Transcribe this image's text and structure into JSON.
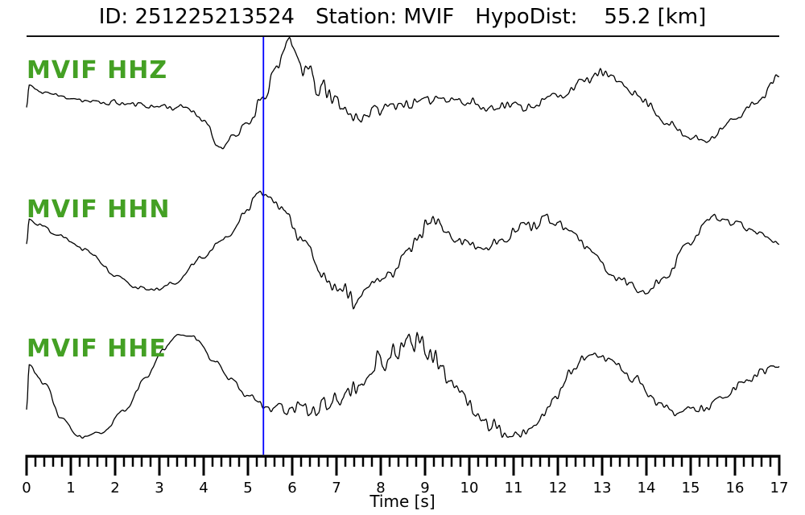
{
  "figure_title": {
    "id": "ID: 251225213524",
    "station": "Station: MVIF",
    "hypodist": "HypoDist:    55.2 [km]"
  },
  "colors": {
    "trace": "#000000",
    "channel_label_green": "#44a024",
    "pick_line_blue": "#0000ff",
    "axis": "#000000",
    "separator": "#111111",
    "background": "#ffffff"
  },
  "chart_data": {
    "type": "line",
    "title": "ID: 251225213524   Station: MVIF   HypoDist:    55.2 [km]",
    "xlabel": "Time [s]",
    "ylabel": "",
    "y_axis": "unlabeled, per-trace normalized amplitude",
    "x_range_s": [
      0,
      17
    ],
    "x_major_tick_s": 1,
    "x_minor_tick_s": 0.2,
    "x_tick_labels": [
      "0",
      "1",
      "2",
      "3",
      "4",
      "5",
      "6",
      "7",
      "8",
      "9",
      "10",
      "11",
      "12",
      "13",
      "14",
      "15",
      "16",
      "17"
    ],
    "grid": false,
    "legend": "none (green per-trace labels)",
    "pick_time_s": 5.35,
    "traces": [
      {
        "id": "hhz",
        "label": "MVIF HHZ",
        "seed": 11,
        "lf_points": [
          [
            0,
            -5
          ],
          [
            0.06,
            23
          ],
          [
            0.3,
            15
          ],
          [
            0.8,
            10
          ],
          [
            1.5,
            5
          ],
          [
            2.2,
            1
          ],
          [
            3,
            -2
          ],
          [
            3.6,
            -5
          ],
          [
            4,
            -20
          ],
          [
            4.35,
            -52
          ],
          [
            4.7,
            -42
          ],
          [
            5,
            -20
          ],
          [
            5.35,
            12
          ],
          [
            5.6,
            45
          ],
          [
            5.95,
            68
          ],
          [
            6.3,
            50
          ],
          [
            6.6,
            25
          ],
          [
            7,
            0
          ],
          [
            7.5,
            -18
          ],
          [
            8,
            -8
          ],
          [
            8.5,
            0
          ],
          [
            9,
            5
          ],
          [
            9.5,
            8
          ],
          [
            10,
            2
          ],
          [
            10.5,
            -5
          ],
          [
            11,
            -3
          ],
          [
            11.5,
            2
          ],
          [
            12,
            10
          ],
          [
            12.5,
            25
          ],
          [
            13,
            38
          ],
          [
            13.4,
            30
          ],
          [
            14,
            2
          ],
          [
            14.5,
            -25
          ],
          [
            15,
            -42
          ],
          [
            15.3,
            -45
          ],
          [
            16,
            -20
          ],
          [
            16.5,
            5
          ],
          [
            17,
            35
          ]
        ],
        "hf_envelope": [
          [
            0,
            3
          ],
          [
            2,
            4
          ],
          [
            4,
            4
          ],
          [
            4.8,
            5
          ],
          [
            5.3,
            8
          ],
          [
            5.7,
            14
          ],
          [
            6.1,
            18
          ],
          [
            6.6,
            19
          ],
          [
            7.1,
            15
          ],
          [
            7.6,
            11
          ],
          [
            8.2,
            9
          ],
          [
            9,
            8
          ],
          [
            10,
            7
          ],
          [
            11,
            7
          ],
          [
            12,
            6
          ],
          [
            13,
            7
          ],
          [
            14,
            6
          ],
          [
            15,
            5
          ],
          [
            16,
            5
          ],
          [
            17,
            5
          ]
        ]
      },
      {
        "id": "hhn",
        "label": "MVIF HHN",
        "seed": 22,
        "lf_points": [
          [
            0,
            -5
          ],
          [
            0.06,
            28
          ],
          [
            0.3,
            20
          ],
          [
            0.7,
            8
          ],
          [
            1.3,
            -10
          ],
          [
            2,
            -40
          ],
          [
            2.5,
            -58
          ],
          [
            3,
            -60
          ],
          [
            3.3,
            -52
          ],
          [
            4,
            -20
          ],
          [
            4.5,
            5
          ],
          [
            5,
            40
          ],
          [
            5.2,
            58
          ],
          [
            5.45,
            55
          ],
          [
            5.8,
            38
          ],
          [
            6.2,
            5
          ],
          [
            6.6,
            -30
          ],
          [
            7,
            -60
          ],
          [
            7.4,
            -70
          ],
          [
            7.8,
            -55
          ],
          [
            8.2,
            -40
          ],
          [
            8.6,
            -18
          ],
          [
            8.85,
            5
          ],
          [
            9.1,
            28
          ],
          [
            9.5,
            12
          ],
          [
            9.8,
            0
          ],
          [
            10.3,
            -8
          ],
          [
            10.8,
            5
          ],
          [
            11.3,
            20
          ],
          [
            11.8,
            28
          ],
          [
            12.3,
            12
          ],
          [
            12.8,
            -18
          ],
          [
            13.3,
            -45
          ],
          [
            13.9,
            -62
          ],
          [
            14.4,
            -45
          ],
          [
            15,
            0
          ],
          [
            15.5,
            32
          ],
          [
            16,
            22
          ],
          [
            16.5,
            12
          ],
          [
            17,
            -2
          ]
        ],
        "hf_envelope": [
          [
            0,
            3
          ],
          [
            3,
            3
          ],
          [
            4.5,
            4
          ],
          [
            5.5,
            5
          ],
          [
            6.1,
            9
          ],
          [
            6.7,
            15
          ],
          [
            7.2,
            19
          ],
          [
            7.8,
            17
          ],
          [
            8.4,
            13
          ],
          [
            9.1,
            10
          ],
          [
            10,
            8
          ],
          [
            11,
            8
          ],
          [
            12,
            8
          ],
          [
            13,
            7
          ],
          [
            14,
            6
          ],
          [
            15,
            6
          ],
          [
            16,
            5
          ],
          [
            17,
            5
          ]
        ]
      },
      {
        "id": "hhe",
        "label": "MVIF HHE",
        "seed": 33,
        "lf_points": [
          [
            0,
            -40
          ],
          [
            0.06,
            15
          ],
          [
            0.4,
            -8
          ],
          [
            0.8,
            -50
          ],
          [
            1.2,
            -73
          ],
          [
            1.7,
            -68
          ],
          [
            2.2,
            -40
          ],
          [
            2.7,
            0
          ],
          [
            3.1,
            38
          ],
          [
            3.4,
            54
          ],
          [
            3.8,
            50
          ],
          [
            4.2,
            25
          ],
          [
            4.6,
            -2
          ],
          [
            5,
            -22
          ],
          [
            5.4,
            -33
          ],
          [
            5.8,
            -42
          ],
          [
            6.2,
            -38
          ],
          [
            6.6,
            -35
          ],
          [
            7,
            -25
          ],
          [
            7.5,
            -10
          ],
          [
            8,
            20
          ],
          [
            8.5,
            45
          ],
          [
            8.8,
            42
          ],
          [
            9.2,
            22
          ],
          [
            9.6,
            0
          ],
          [
            10,
            -35
          ],
          [
            10.5,
            -60
          ],
          [
            10.9,
            -72
          ],
          [
            11.4,
            -60
          ],
          [
            11.9,
            -30
          ],
          [
            12.3,
            8
          ],
          [
            12.7,
            28
          ],
          [
            13.2,
            22
          ],
          [
            13.7,
            0
          ],
          [
            14.2,
            -28
          ],
          [
            14.7,
            -42
          ],
          [
            15.2,
            -38
          ],
          [
            15.7,
            -25
          ],
          [
            16.2,
            -8
          ],
          [
            16.6,
            8
          ],
          [
            17,
            15
          ]
        ],
        "hf_envelope": [
          [
            0,
            3
          ],
          [
            3,
            3
          ],
          [
            4.6,
            3
          ],
          [
            5.3,
            5
          ],
          [
            5.9,
            9
          ],
          [
            6.5,
            13
          ],
          [
            7.1,
            16
          ],
          [
            7.7,
            18
          ],
          [
            8.3,
            20
          ],
          [
            8.7,
            17
          ],
          [
            9.3,
            13
          ],
          [
            10,
            10
          ],
          [
            11,
            9
          ],
          [
            12,
            9
          ],
          [
            13,
            8
          ],
          [
            14,
            7
          ],
          [
            15,
            6
          ],
          [
            16,
            6
          ],
          [
            17,
            5
          ]
        ]
      }
    ]
  }
}
